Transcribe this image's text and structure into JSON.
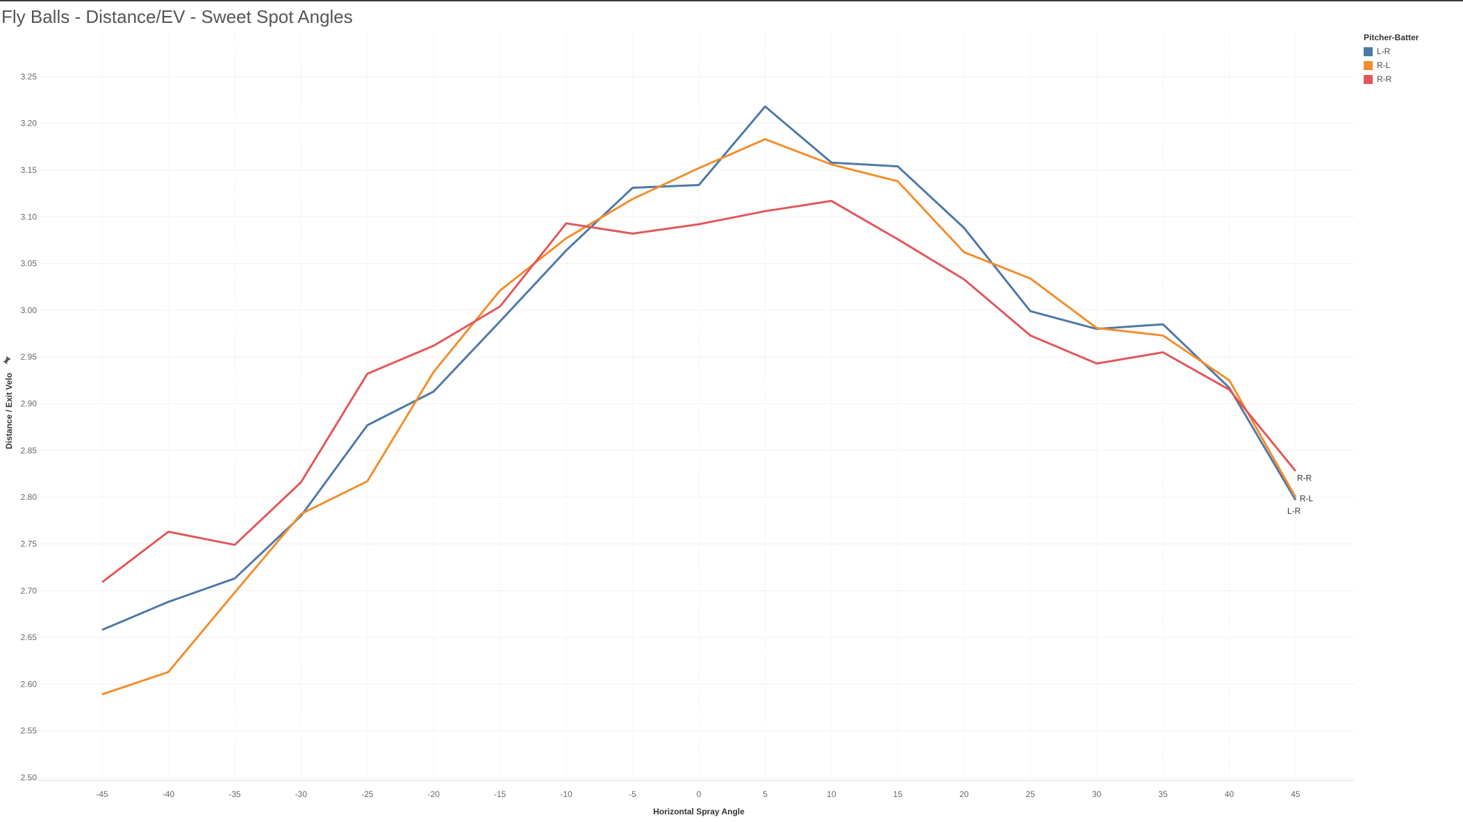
{
  "title": "Fly Balls - Distance/EV - Sweet Spot Angles",
  "legend": {
    "title": "Pitcher-Batter",
    "items": [
      {
        "label": "L-R",
        "color": "#4e79a7"
      },
      {
        "label": "R-L",
        "color": "#f28e2b"
      },
      {
        "label": "R-R",
        "color": "#e15759"
      }
    ]
  },
  "chart_data": {
    "type": "line",
    "title": "Fly Balls - Distance/EV - Sweet Spot Angles",
    "xlabel": "Horizontal Spray Angle",
    "ylabel": "Distance / Exit Velo",
    "x": [
      -45,
      -40,
      -35,
      -30,
      -25,
      -20,
      -15,
      -10,
      -5,
      0,
      5,
      10,
      15,
      20,
      25,
      30,
      35,
      40,
      45
    ],
    "xlim": [
      -50,
      50
    ],
    "ylim": [
      2.5,
      3.3
    ],
    "yticks": [
      2.5,
      2.55,
      2.6,
      2.65,
      2.7,
      2.75,
      2.8,
      2.85,
      2.9,
      2.95,
      3.0,
      3.05,
      3.1,
      3.15,
      3.2,
      3.25
    ],
    "grid": true,
    "legend_position": "top-right",
    "series": [
      {
        "name": "L-R",
        "color": "#4e79a7",
        "end_label": "L-R",
        "values": [
          2.658,
          2.688,
          2.713,
          2.78,
          2.877,
          2.913,
          2.988,
          3.064,
          3.131,
          3.134,
          3.218,
          3.158,
          3.154,
          3.088,
          2.999,
          2.98,
          2.985,
          2.917,
          2.797
        ]
      },
      {
        "name": "R-L",
        "color": "#f28e2b",
        "end_label": "R-L",
        "values": [
          2.589,
          2.613,
          2.698,
          2.782,
          2.817,
          2.934,
          3.021,
          3.077,
          3.119,
          3.152,
          3.183,
          3.156,
          3.138,
          3.062,
          3.034,
          2.981,
          2.973,
          2.925,
          2.8
        ]
      },
      {
        "name": "R-R",
        "color": "#e15759",
        "end_label": "R-R",
        "values": [
          2.709,
          2.763,
          2.749,
          2.816,
          2.932,
          2.962,
          3.004,
          3.093,
          3.082,
          3.092,
          3.106,
          3.117,
          3.076,
          3.033,
          2.973,
          2.943,
          2.955,
          2.915,
          2.828
        ]
      }
    ]
  }
}
